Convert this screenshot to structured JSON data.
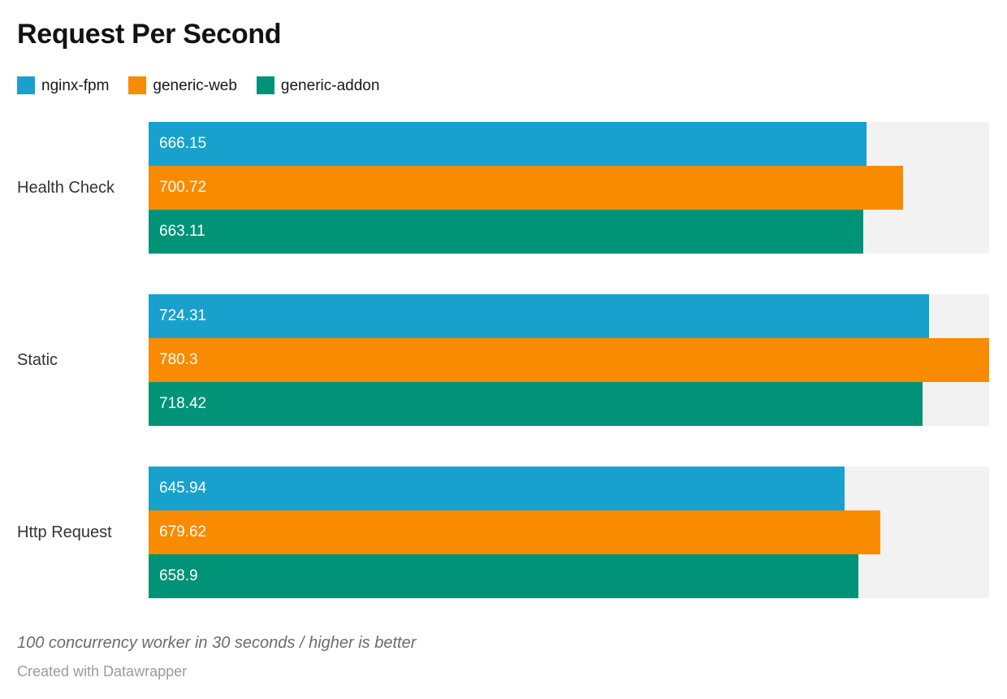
{
  "title": "Request Per Second",
  "legend": [
    {
      "label": "nginx-fpm",
      "color": "#18a1cd"
    },
    {
      "label": "generic-web",
      "color": "#f98b00"
    },
    {
      "label": "generic-addon",
      "color": "#009377"
    }
  ],
  "footer": {
    "note": "100 concurrency worker in 30 seconds / higher is better",
    "attribution": "Created with Datawrapper"
  },
  "chart_data": {
    "type": "bar",
    "orientation": "horizontal",
    "title": "Request Per Second",
    "categories": [
      "Health Check",
      "Static",
      "Http Request"
    ],
    "series": [
      {
        "name": "nginx-fpm",
        "color": "#18a1cd",
        "values": [
          666.15,
          724.31,
          645.94
        ]
      },
      {
        "name": "generic-web",
        "color": "#f98b00",
        "values": [
          700.72,
          780.3,
          679.62
        ]
      },
      {
        "name": "generic-addon",
        "color": "#009377",
        "values": [
          663.11,
          718.42,
          658.9
        ]
      }
    ],
    "xlabel": "",
    "ylabel": "",
    "xlim": [
      0,
      780.3
    ],
    "value_labels_inside_bars": true,
    "track_color": "#f2f2f2",
    "grid": false,
    "legend_position": "top",
    "footnote": "100 concurrency worker in 30 seconds / higher is better"
  }
}
